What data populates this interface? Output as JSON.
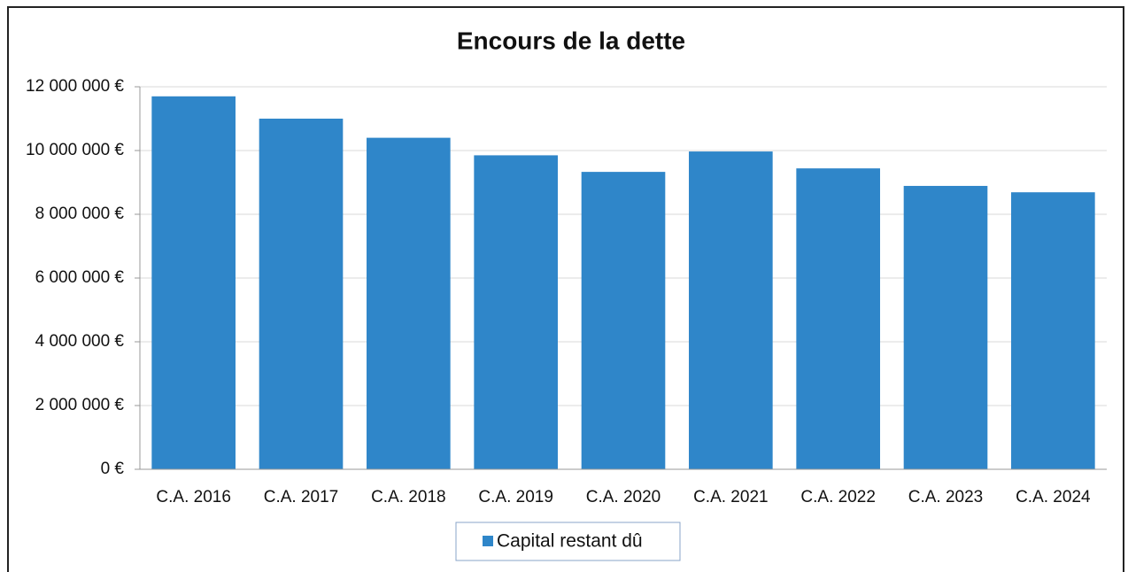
{
  "chart_data": {
    "type": "bar",
    "title": "Encours de la dette",
    "categories": [
      "C.A. 2016",
      "C.A. 2017",
      "C.A. 2018",
      "C.A. 2019",
      "C.A. 2020",
      "C.A. 2021",
      "C.A. 2022",
      "C.A. 2023",
      "C.A. 2024"
    ],
    "series": [
      {
        "name": "Capital restant dû",
        "color": "#2f86c9",
        "values": [
          11700000,
          11000000,
          10400000,
          9850000,
          9330000,
          9970000,
          9440000,
          8890000,
          8690000
        ]
      }
    ],
    "ylim": [
      0,
      12000000
    ],
    "yticks": [
      {
        "value": 0,
        "label": "0 €"
      },
      {
        "value": 2000000,
        "label": "2 000 000 €"
      },
      {
        "value": 4000000,
        "label": "4 000 000 €"
      },
      {
        "value": 6000000,
        "label": "6 000 000 €"
      },
      {
        "value": 8000000,
        "label": "8 000 000 €"
      },
      {
        "value": 10000000,
        "label": "10 000 000 €"
      },
      {
        "value": 12000000,
        "label": "12 000 000 €"
      }
    ],
    "grid": true,
    "legend": "bottom"
  }
}
